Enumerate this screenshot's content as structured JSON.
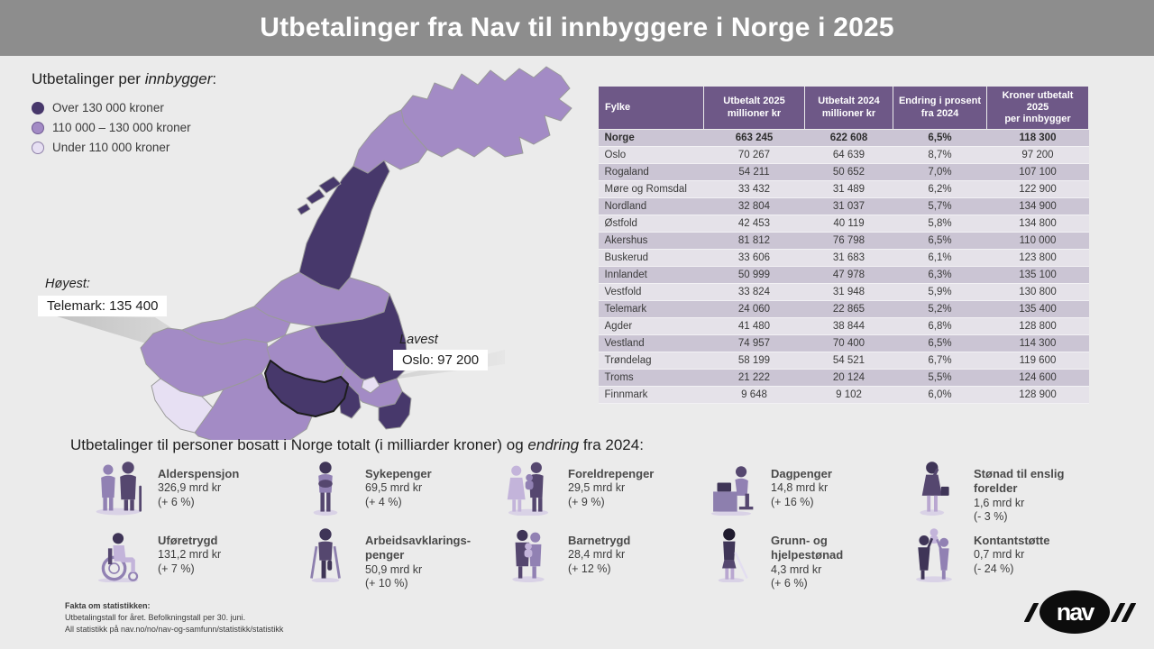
{
  "header": {
    "title": "Utbetalinger fra Nav til innbyggere i Norge i 2025"
  },
  "legend": {
    "title_prefix": "Utbetalinger per ",
    "title_italic": "innbygger",
    "title_suffix": ":",
    "items": [
      {
        "label": "Over 130 000 kroner",
        "category": "over"
      },
      {
        "label": "110 000 – 130 000 kroner",
        "category": "mid"
      },
      {
        "label": "Under 110 000 kroner",
        "category": "under"
      }
    ]
  },
  "map": {
    "category_colors": {
      "over": "#47386b",
      "mid": "#a38bc5",
      "under": "#e7e0f3"
    },
    "regions": [
      {
        "name": "Vestland",
        "category": "mid"
      },
      {
        "name": "Møre og Romsdal",
        "category": "mid"
      },
      {
        "name": "Trøndelag",
        "category": "mid"
      },
      {
        "name": "Buskerud",
        "category": "mid"
      },
      {
        "name": "Agder",
        "category": "mid"
      },
      {
        "name": "Rogaland",
        "category": "under"
      },
      {
        "name": "Innlandet",
        "category": "over"
      },
      {
        "name": "Akershus",
        "category": "mid"
      },
      {
        "name": "Østfold",
        "category": "over"
      },
      {
        "name": "Vestfold",
        "category": "over"
      },
      {
        "name": "Telemark",
        "category": "over"
      },
      {
        "name": "Oslo",
        "category": "under"
      },
      {
        "name": "Nordland",
        "category": "over"
      },
      {
        "name": "Nordland-Lofoten-1",
        "category": "over"
      },
      {
        "name": "Nordland-Lofoten-2",
        "category": "over"
      },
      {
        "name": "Nordland-Lofoten-3",
        "category": "over"
      },
      {
        "name": "Troms",
        "category": "mid"
      },
      {
        "name": "Finnmark",
        "category": "mid"
      }
    ],
    "annotations": {
      "highest_label": "Høyest:",
      "highest_value": "Telemark: 135 400",
      "lowest_label": "Lavest",
      "lowest_value": "Oslo: 97 200"
    }
  },
  "table": {
    "columns": [
      "Fylke",
      "Utbetalt 2025\nmillioner kr",
      "Utbetalt 2024\nmillioner kr",
      "Endring i prosent\nfra 2024",
      "Kroner utbetalt\n2025\nper innbygger"
    ],
    "rows": [
      {
        "fylke": "Norge",
        "u2025": "663 245",
        "u2024": "622 608",
        "endring": "6,5%",
        "per": "118 300",
        "bold": true
      },
      {
        "fylke": "Oslo",
        "u2025": "70 267",
        "u2024": "64 639",
        "endring": "8,7%",
        "per": "97 200"
      },
      {
        "fylke": "Rogaland",
        "u2025": "54 211",
        "u2024": "50 652",
        "endring": "7,0%",
        "per": "107 100"
      },
      {
        "fylke": "Møre og Romsdal",
        "u2025": "33 432",
        "u2024": "31 489",
        "endring": "6,2%",
        "per": "122 900"
      },
      {
        "fylke": "Nordland",
        "u2025": "32 804",
        "u2024": "31 037",
        "endring": "5,7%",
        "per": "134 900"
      },
      {
        "fylke": "Østfold",
        "u2025": "42 453",
        "u2024": "40 119",
        "endring": "5,8%",
        "per": "134 800"
      },
      {
        "fylke": "Akershus",
        "u2025": "81 812",
        "u2024": "76 798",
        "endring": "6,5%",
        "per": "110 000"
      },
      {
        "fylke": "Buskerud",
        "u2025": "33 606",
        "u2024": "31 683",
        "endring": "6,1%",
        "per": "123 800"
      },
      {
        "fylke": "Innlandet",
        "u2025": "50 999",
        "u2024": "47 978",
        "endring": "6,3%",
        "per": "135 100"
      },
      {
        "fylke": "Vestfold",
        "u2025": "33 824",
        "u2024": "31 948",
        "endring": "5,9%",
        "per": "130 800"
      },
      {
        "fylke": "Telemark",
        "u2025": "24 060",
        "u2024": "22 865",
        "endring": "5,2%",
        "per": "135 400"
      },
      {
        "fylke": "Agder",
        "u2025": "41 480",
        "u2024": "38 844",
        "endring": "6,8%",
        "per": "128 800"
      },
      {
        "fylke": "Vestland",
        "u2025": "74 957",
        "u2024": "70 400",
        "endring": "6,5%",
        "per": "114 300"
      },
      {
        "fylke": "Trøndelag",
        "u2025": "58 199",
        "u2024": "54 521",
        "endring": "6,7%",
        "per": "119 600"
      },
      {
        "fylke": "Troms",
        "u2025": "21 222",
        "u2024": "20 124",
        "endring": "5,5%",
        "per": "124 600"
      },
      {
        "fylke": "Finnmark",
        "u2025": "9 648",
        "u2024": "9 102",
        "endring": "6,0%",
        "per": "128 900"
      }
    ]
  },
  "benefits": {
    "heading_prefix": "Utbetalinger til personer bosatt i Norge totalt (i milliarder kroner) og ",
    "heading_italic": "endring",
    "heading_suffix": " fra 2024:",
    "items": [
      {
        "name": "Alderspensjon",
        "amount": "326,9 mrd kr",
        "change": "(+ 6 %)"
      },
      {
        "name": "Sykepenger",
        "amount": "69,5 mrd kr",
        "change": "(+ 4 %)"
      },
      {
        "name": "Foreldrepenger",
        "amount": "29,5 mrd kr",
        "change": "(+ 9 %)"
      },
      {
        "name": "Dagpenger",
        "amount": "14,8 mrd kr",
        "change": "(+ 16 %)"
      },
      {
        "name": "Stønad til enslig\nforelder",
        "amount": "1,6 mrd kr",
        "change": "(- 3 %)"
      },
      {
        "name": "Uføretrygd",
        "amount": "131,2 mrd kr",
        "change": "(+ 7 %)"
      },
      {
        "name": "Arbeidsavklarings-\npenger",
        "amount": "50,9 mrd kr",
        "change": "(+ 10 %)"
      },
      {
        "name": "Barnetrygd",
        "amount": "28,4 mrd kr",
        "change": "(+ 12 %)"
      },
      {
        "name": "Grunn- og\nhjelpestønad",
        "amount": "4,3 mrd kr",
        "change": "(+ 6 %)"
      },
      {
        "name": "Kontantstøtte",
        "amount": "0,7 mrd kr",
        "change": "(- 24 %)"
      }
    ]
  },
  "footer": {
    "facts_title": "Fakta om statistikken:",
    "facts_line1": "Utbetalingstall for året. Befolkningstall per 30. juni.",
    "facts_line2": "All statistikk på nav.no/no/nav-og-samfunn/statistikk/statistikk",
    "logo_text": "nav"
  }
}
